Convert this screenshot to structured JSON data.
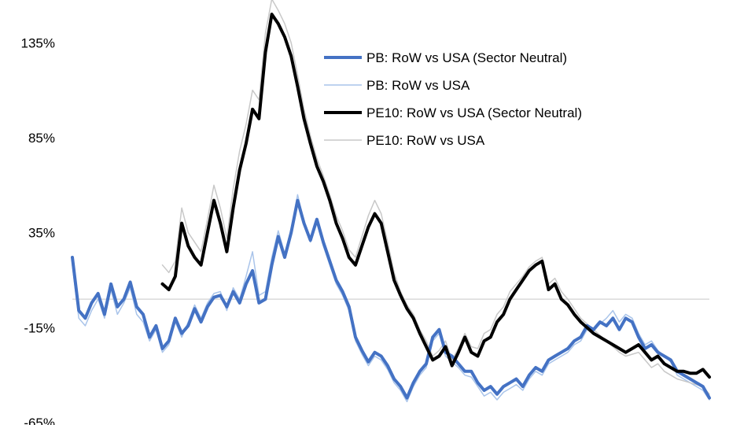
{
  "chart_data": {
    "type": "line",
    "title": "",
    "xlabel": "",
    "ylabel": "",
    "ylim": [
      -65,
      155
    ],
    "y_ticks": [
      {
        "value": 135,
        "label": "135%"
      },
      {
        "value": 85,
        "label": "85%"
      },
      {
        "value": 35,
        "label": "35%"
      },
      {
        "value": -15,
        "label": "-15%"
      },
      {
        "value": -65,
        "label": "-65%"
      }
    ],
    "x_axis_labels": "none",
    "zero_line": true,
    "grid": false,
    "legend_position": "top-right",
    "series": [
      {
        "name": "PB: RoW vs USA (Sector Neutral)",
        "color": "#4472c4",
        "style": "thick",
        "values": [
          22,
          -6,
          -10,
          -2,
          3,
          -8,
          8,
          -4,
          0,
          9,
          -4,
          -8,
          -20,
          -14,
          -26,
          -22,
          -10,
          -18,
          -14,
          -5,
          -12,
          -4,
          1,
          2,
          -4,
          4,
          -2,
          8,
          15,
          -2,
          0,
          18,
          33,
          22,
          35,
          52,
          40,
          31,
          42,
          30,
          20,
          10,
          4,
          -4,
          -20,
          -27,
          -33,
          -28,
          -30,
          -35,
          -42,
          -46,
          -52,
          -44,
          -38,
          -34,
          -20,
          -16,
          -28,
          -30,
          -34,
          -38,
          -38,
          -44,
          -48,
          -46,
          -50,
          -46,
          -44,
          -42,
          -46,
          -40,
          -36,
          -38,
          -32,
          -30,
          -28,
          -26,
          -22,
          -20,
          -14,
          -16,
          -12,
          -14,
          -10,
          -16,
          -10,
          -12,
          -20,
          -26,
          -24,
          -28,
          -30,
          -32,
          -38,
          -40,
          -42,
          -44,
          -46,
          -52
        ]
      },
      {
        "name": "PB: RoW vs USA",
        "color": "#a9c4ea",
        "style": "thin",
        "values": [
          18,
          -10,
          -14,
          -6,
          0,
          -10,
          5,
          -8,
          -2,
          6,
          -8,
          -12,
          -22,
          -16,
          -28,
          -24,
          -12,
          -20,
          -12,
          -3,
          -10,
          -2,
          3,
          4,
          -6,
          6,
          0,
          12,
          25,
          2,
          4,
          22,
          36,
          24,
          37,
          55,
          41,
          30,
          40,
          28,
          18,
          8,
          2,
          -6,
          -22,
          -29,
          -35,
          -30,
          -32,
          -37,
          -44,
          -48,
          -54,
          -46,
          -40,
          -36,
          -22,
          -18,
          -30,
          -33,
          -36,
          -40,
          -41,
          -46,
          -51,
          -49,
          -53,
          -49,
          -47,
          -45,
          -48,
          -42,
          -38,
          -40,
          -34,
          -32,
          -30,
          -28,
          -24,
          -22,
          -16,
          -17,
          -13,
          -10,
          -6,
          -12,
          -8,
          -10,
          -18,
          -24,
          -22,
          -27,
          -30,
          -33,
          -40,
          -42,
          -44,
          -46,
          -48,
          -53
        ]
      },
      {
        "name": "PE10: RoW vs USA (Sector Neutral)",
        "color": "#000000",
        "style": "thick",
        "values": [
          null,
          null,
          null,
          null,
          null,
          null,
          null,
          null,
          null,
          null,
          null,
          null,
          null,
          null,
          8,
          5,
          12,
          40,
          28,
          22,
          18,
          35,
          52,
          40,
          25,
          48,
          68,
          82,
          100,
          95,
          130,
          150,
          145,
          138,
          128,
          112,
          95,
          82,
          70,
          62,
          52,
          40,
          32,
          22,
          18,
          28,
          38,
          45,
          40,
          25,
          10,
          2,
          -5,
          -10,
          -18,
          -25,
          -32,
          -30,
          -25,
          -35,
          -28,
          -20,
          -28,
          -30,
          -22,
          -20,
          -12,
          -8,
          0,
          5,
          10,
          15,
          18,
          20,
          5,
          8,
          0,
          -3,
          -8,
          -12,
          -15,
          -18,
          -20,
          -22,
          -24,
          -26,
          -28,
          -26,
          -24,
          -28,
          -32,
          -30,
          -34,
          -36,
          -38,
          -38,
          -39,
          -39,
          -37,
          -41
        ]
      },
      {
        "name": "PE10: RoW vs USA",
        "color": "#c8c8c8",
        "style": "thin",
        "values": [
          null,
          null,
          null,
          null,
          null,
          null,
          null,
          null,
          null,
          null,
          null,
          null,
          null,
          null,
          18,
          14,
          20,
          48,
          35,
          30,
          25,
          42,
          60,
          48,
          32,
          58,
          78,
          92,
          110,
          105,
          140,
          158,
          152,
          145,
          135,
          118,
          100,
          86,
          74,
          65,
          55,
          44,
          36,
          26,
          22,
          33,
          44,
          52,
          45,
          30,
          14,
          4,
          -3,
          -8,
          -16,
          -22,
          -30,
          -27,
          -22,
          -32,
          -26,
          -18,
          -25,
          -26,
          -18,
          -16,
          -8,
          -4,
          4,
          8,
          12,
          17,
          20,
          22,
          8,
          11,
          4,
          0,
          -5,
          -10,
          -13,
          -16,
          -19,
          -22,
          -25,
          -28,
          -30,
          -29,
          -28,
          -32,
          -36,
          -34,
          -38,
          -40,
          -42,
          -43,
          -44,
          -45,
          -46,
          -50
        ]
      }
    ]
  }
}
